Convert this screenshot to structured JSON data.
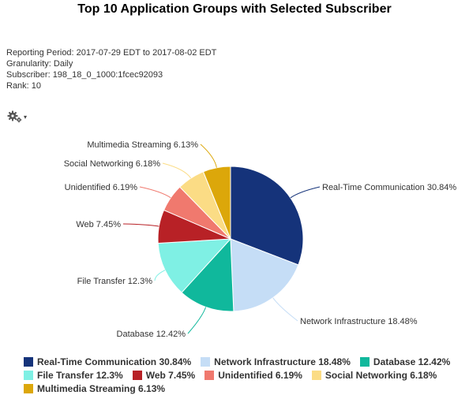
{
  "report": {
    "title": "Top 10 Application Groups with Selected Subscriber",
    "reporting_period": "Reporting Period: 2017-07-29 EDT to 2017-08-02 EDT",
    "granularity": "Granularity: Daily",
    "subscriber": "Subscriber: 198_18_0_1000:1fcec92093",
    "rank": "Rank: 10"
  },
  "toolbar": {
    "gear_icon": "gear-icon",
    "caret": "▾"
  },
  "chart_data": {
    "type": "pie",
    "title": "Top 10 Application Groups with Selected Subscriber",
    "legend_position": "bottom",
    "slices": [
      {
        "name": "Real-Time Communication",
        "value": 30.84,
        "label": "Real-Time Communication 30.84%",
        "color": "#15337a"
      },
      {
        "name": "Network Infrastructure",
        "value": 18.48,
        "label": "Network Infrastructure 18.48%",
        "color": "#c5ddf6"
      },
      {
        "name": "Database",
        "value": 12.42,
        "label": "Database 12.42%",
        "color": "#10b89c"
      },
      {
        "name": "File Transfer",
        "value": 12.3,
        "label": "File Transfer 12.3%",
        "color": "#7ff0e4"
      },
      {
        "name": "Web",
        "value": 7.45,
        "label": "Web 7.45%",
        "color": "#b82126"
      },
      {
        "name": "Unidentified",
        "value": 6.19,
        "label": "Unidentified 6.19%",
        "color": "#f0796e"
      },
      {
        "name": "Social Networking",
        "value": 6.18,
        "label": "Social Networking 6.18%",
        "color": "#fbdc85"
      },
      {
        "name": "Multimedia Streaming",
        "value": 6.13,
        "label": "Multimedia Streaming 6.13%",
        "color": "#dca70a"
      }
    ]
  }
}
